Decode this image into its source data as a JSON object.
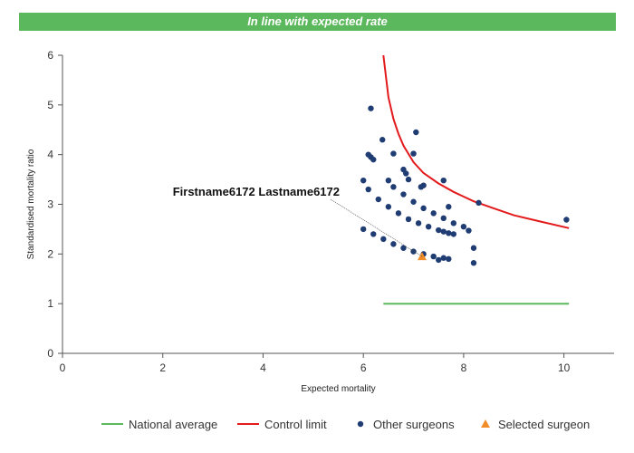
{
  "banner": {
    "text": "In line with expected rate",
    "color": "#5cb85c"
  },
  "chart_data": {
    "type": "scatter",
    "xlabel": "Expected mortality",
    "ylabel": "Standardised mortality ratio",
    "xlim": [
      0,
      11
    ],
    "ylim": [
      0,
      6
    ],
    "xticks": [
      0,
      2,
      4,
      6,
      8,
      10
    ],
    "yticks": [
      0,
      1,
      2,
      3,
      4,
      5,
      6
    ],
    "grid": false,
    "legend_position": "bottom",
    "annotation": {
      "text": "Firstname6172 Lastname6172",
      "x": 7.17,
      "y": 1.95
    },
    "series": [
      {
        "name": "National average",
        "type": "line",
        "color": "#5cb85c",
        "x": [
          6.4,
          10.1
        ],
        "y": [
          1.0,
          1.0
        ]
      },
      {
        "name": "Control limit",
        "type": "line",
        "color": "#e31a1c",
        "x": [
          6.4,
          6.5,
          6.6,
          6.7,
          6.8,
          7.0,
          7.2,
          7.5,
          7.8,
          8.2,
          8.6,
          9.0,
          9.5,
          10.1
        ],
        "y": [
          6.0,
          5.15,
          4.72,
          4.42,
          4.18,
          3.85,
          3.63,
          3.42,
          3.25,
          3.06,
          2.92,
          2.78,
          2.66,
          2.52
        ]
      },
      {
        "name": "Other surgeons",
        "type": "scatter",
        "color": "#1f3c73",
        "x": [
          6.15,
          6.38,
          6.1,
          6.15,
          6.2,
          6.6,
          7.05,
          7.2,
          7.15,
          7.6,
          7.7,
          8.3,
          10.05,
          6.0,
          6.1,
          6.3,
          6.5,
          6.7,
          6.9,
          7.1,
          7.3,
          7.5,
          7.6,
          7.7,
          7.8,
          6.5,
          6.6,
          6.8,
          7.0,
          7.2,
          7.4,
          7.6,
          7.8,
          8.0,
          6.0,
          6.2,
          6.4,
          6.6,
          6.8,
          7.0,
          7.2,
          7.4,
          7.6,
          8.1,
          8.2,
          8.2,
          7.5,
          7.7,
          6.8,
          6.85,
          6.9,
          7.0
        ],
        "y": [
          4.93,
          4.3,
          4.0,
          3.95,
          3.9,
          4.02,
          4.45,
          3.38,
          3.35,
          3.48,
          2.95,
          3.03,
          2.69,
          3.48,
          3.3,
          3.1,
          2.95,
          2.82,
          2.7,
          2.62,
          2.55,
          2.48,
          2.45,
          2.42,
          2.4,
          3.48,
          3.35,
          3.2,
          3.05,
          2.92,
          2.82,
          2.72,
          2.62,
          2.55,
          2.5,
          2.4,
          2.3,
          2.2,
          2.12,
          2.05,
          2.0,
          1.95,
          1.92,
          2.47,
          2.12,
          1.82,
          1.88,
          1.9,
          3.7,
          3.62,
          3.5,
          4.02
        ]
      },
      {
        "name": "Selected surgeon",
        "type": "scatter",
        "marker": "triangle",
        "color": "#f28c28",
        "x": [
          7.17
        ],
        "y": [
          1.95
        ]
      }
    ]
  }
}
